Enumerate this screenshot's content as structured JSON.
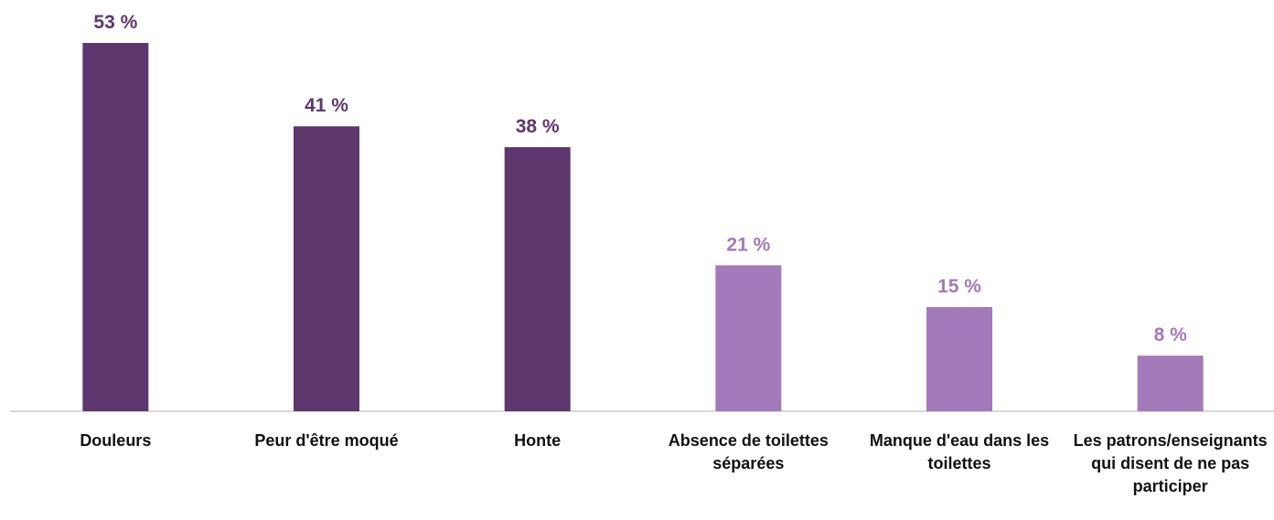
{
  "chart_data": {
    "type": "bar",
    "categories": [
      "Douleurs",
      "Peur d'être moqué",
      "Honte",
      "Absence de toilettes séparées",
      "Manque d'eau dans les toilettes",
      "Les patrons/enseignants qui disent de ne pas participer"
    ],
    "values": [
      53,
      41,
      38,
      21,
      15,
      8
    ],
    "value_labels": [
      "53 %",
      "41 %",
      "38 %",
      "21 %",
      "15 %",
      "8 %"
    ],
    "colors": [
      "#5e376e",
      "#5e376e",
      "#5e376e",
      "#a27aba",
      "#a27aba",
      "#a27aba"
    ]
  }
}
